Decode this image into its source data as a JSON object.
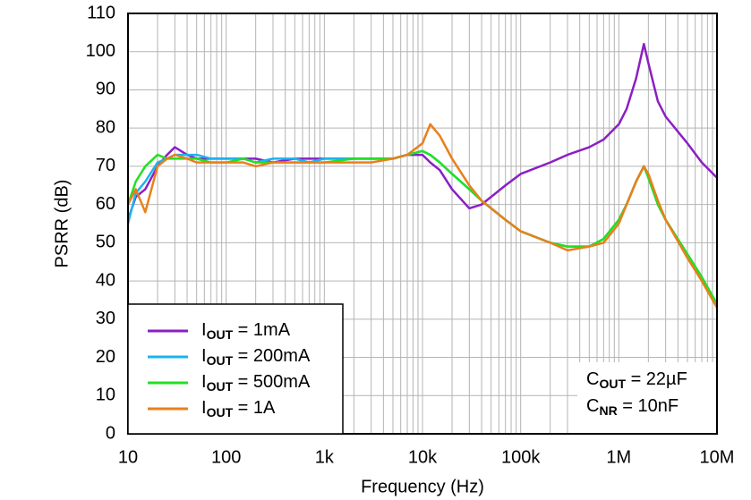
{
  "chart_data": {
    "type": "line",
    "x_label": "Frequency (Hz)",
    "y_label": "PSRR (dB)",
    "log_x": true,
    "grid": true,
    "minor_grid": true,
    "legend": "lower left",
    "xlim": [
      10,
      10000000
    ],
    "ylim": [
      0,
      110
    ],
    "xticks": [
      10,
      100,
      {
        "value": 1000,
        "label": "1k"
      },
      {
        "value": 10000,
        "label": "10k"
      },
      {
        "value": 100000,
        "label": "100k"
      },
      {
        "value": 1000000,
        "label": "1M"
      },
      {
        "value": 10000000,
        "label": "10M"
      }
    ],
    "yticks": [
      0,
      10,
      20,
      30,
      40,
      50,
      60,
      70,
      80,
      90,
      100,
      110
    ],
    "annotations": [
      "COUT = 22µF",
      "CNR = 10nF"
    ],
    "x": [
      10,
      12,
      15,
      20,
      25,
      30,
      40,
      50,
      70,
      100,
      150,
      200,
      300,
      500,
      700,
      1000,
      2000,
      3000,
      5000,
      7000,
      10000,
      12000,
      15000,
      20000,
      30000,
      40000,
      50000,
      70000,
      100000,
      200000,
      300000,
      500000,
      700000,
      1000000,
      1200000,
      1500000,
      1800000,
      2000000,
      2500000,
      3000000,
      5000000,
      7000000,
      10000000
    ],
    "series": [
      {
        "name": "IOUT = 1mA",
        "color": "#8b1fc4",
        "values": [
          56,
          62,
          64,
          70,
          73,
          75,
          73,
          72,
          72,
          72,
          72,
          72,
          71,
          72,
          72,
          72,
          72,
          72,
          72,
          73,
          73,
          71,
          69,
          64,
          59,
          60,
          62,
          65,
          68,
          71,
          73,
          75,
          77,
          81,
          85,
          93,
          102,
          97,
          87,
          83,
          76,
          71,
          67
        ]
      },
      {
        "name": "IOUT = 200mA",
        "color": "#1ab4f0",
        "values": [
          55,
          63,
          66,
          71,
          72,
          73,
          73,
          73,
          72,
          72,
          72,
          71,
          72,
          72,
          71,
          72,
          72,
          72,
          72,
          73,
          74,
          73,
          71,
          68,
          64,
          61,
          59,
          56,
          53,
          50,
          49,
          49,
          51,
          56,
          60,
          66,
          70,
          67,
          60,
          56,
          47,
          41,
          34
        ]
      },
      {
        "name": "IOUT = 500mA",
        "color": "#22e022",
        "values": [
          60,
          66,
          70,
          73,
          72,
          72,
          72,
          72,
          71,
          71,
          72,
          71,
          71,
          71,
          71,
          71,
          72,
          72,
          72,
          73,
          74,
          73,
          71,
          68,
          64,
          61,
          59,
          56,
          53,
          50,
          49,
          49,
          51,
          56,
          60,
          66,
          70,
          67,
          60,
          56,
          47,
          41,
          34
        ]
      },
      {
        "name": "IOUT = 1A",
        "color": "#e8801a",
        "values": [
          60,
          64,
          58,
          70,
          72,
          73,
          72,
          71,
          71,
          71,
          71,
          70,
          71,
          71,
          71,
          71,
          71,
          71,
          72,
          73,
          76,
          81,
          78,
          72,
          65,
          61,
          59,
          56,
          53,
          50,
          48,
          49,
          50,
          55,
          60,
          66,
          70,
          68,
          61,
          56,
          46,
          40,
          33
        ]
      }
    ]
  }
}
